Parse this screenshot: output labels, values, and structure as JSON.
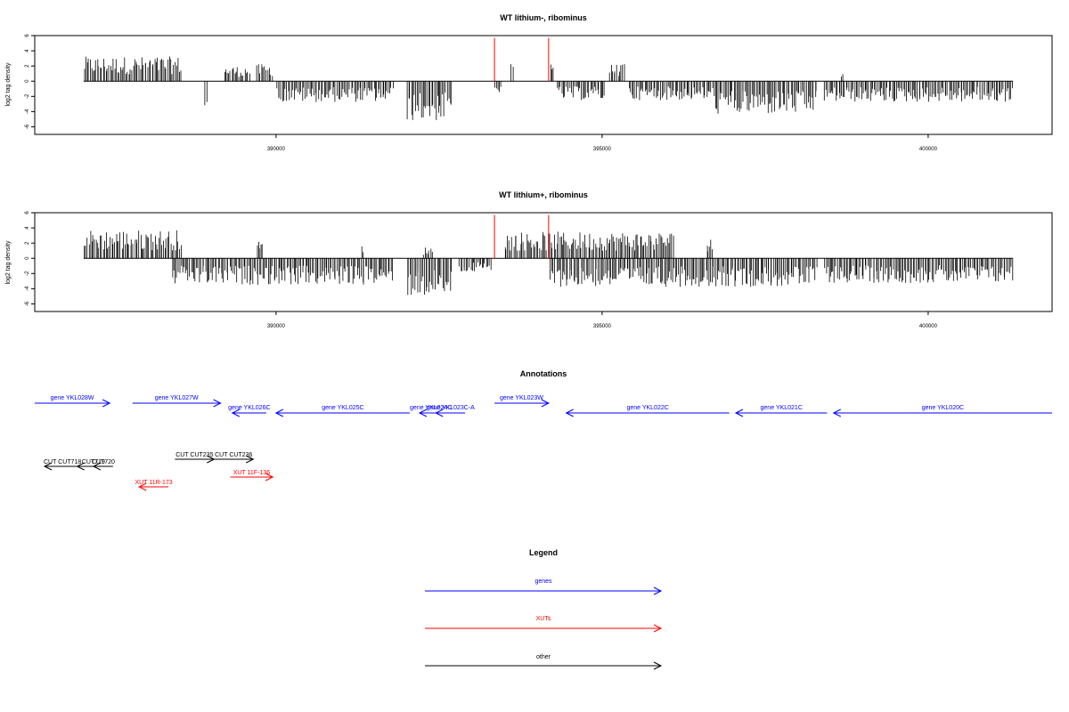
{
  "chart_data": [
    {
      "type": "bar",
      "title": "WT lithium-, ribominus",
      "ylabel": "log2 tag density",
      "xlabel": "",
      "xlim": [
        386300,
        401900
      ],
      "ylim": [
        -7,
        6
      ],
      "x_ticks": [
        390000,
        395000,
        400000
      ],
      "y_ticks": [
        -6,
        -4,
        -2,
        0,
        2,
        4,
        6
      ],
      "data_range": [
        387050,
        401300
      ],
      "red_markers": [
        393350,
        394180
      ],
      "positive_regions": [
        {
          "from": 387050,
          "to": 388550,
          "level": 2.6
        },
        {
          "from": 389200,
          "to": 389600,
          "level": 1.6
        },
        {
          "from": 389700,
          "to": 389950,
          "level": 1.8
        },
        {
          "from": 393600,
          "to": 393650,
          "level": 2.8
        },
        {
          "from": 394200,
          "to": 394260,
          "level": 2.4
        },
        {
          "from": 395100,
          "to": 395350,
          "level": 1.8
        },
        {
          "from": 398650,
          "to": 398700,
          "level": 0.8
        }
      ],
      "negative_regions": [
        {
          "from": 388900,
          "to": 388950,
          "level": -3.0
        },
        {
          "from": 390000,
          "to": 391800,
          "level": -2.2
        },
        {
          "from": 392000,
          "to": 392700,
          "level": -4.2
        },
        {
          "from": 393350,
          "to": 393450,
          "level": -1.2
        },
        {
          "from": 394300,
          "to": 395050,
          "level": -2.0
        },
        {
          "from": 395400,
          "to": 396700,
          "level": -2.0
        },
        {
          "from": 396700,
          "to": 398300,
          "level": -3.5
        },
        {
          "from": 398400,
          "to": 401300,
          "level": -2.2
        }
      ]
    },
    {
      "type": "bar",
      "title": "WT lithium+, ribominus",
      "ylabel": "log2 tag density",
      "xlabel": "",
      "xlim": [
        386300,
        401900
      ],
      "ylim": [
        -7,
        6
      ],
      "x_ticks": [
        390000,
        395000,
        400000
      ],
      "y_ticks": [
        -6,
        -4,
        -2,
        0,
        2,
        4,
        6
      ],
      "data_range": [
        387050,
        401300
      ],
      "red_markers": [
        393350,
        394180
      ],
      "positive_regions": [
        {
          "from": 387050,
          "to": 388550,
          "level": 3.0
        },
        {
          "from": 389700,
          "to": 389800,
          "level": 1.8
        },
        {
          "from": 391300,
          "to": 391350,
          "level": 1.5
        },
        {
          "from": 392250,
          "to": 392400,
          "level": 1.2
        },
        {
          "from": 393500,
          "to": 396100,
          "level": 2.8
        },
        {
          "from": 396600,
          "to": 396700,
          "level": 2.5
        }
      ],
      "negative_regions": [
        {
          "from": 388400,
          "to": 391800,
          "level": -2.8
        },
        {
          "from": 392000,
          "to": 392700,
          "level": -4.0
        },
        {
          "from": 392800,
          "to": 393300,
          "level": -1.5
        },
        {
          "from": 394200,
          "to": 398300,
          "level": -3.0
        },
        {
          "from": 398400,
          "to": 401300,
          "level": -2.6
        }
      ]
    }
  ],
  "annotations": {
    "title": "Annotations",
    "genes": [
      {
        "label": "gene YKL028W",
        "from": 386300,
        "to": 387450,
        "strand": "+"
      },
      {
        "label": "gene YKL027W",
        "from": 387800,
        "to": 389150,
        "strand": "+"
      },
      {
        "label": "gene YKL026C",
        "from": 389330,
        "to": 389850,
        "strand": "-"
      },
      {
        "label": "gene YKL025C",
        "from": 390000,
        "to": 392050,
        "strand": "-"
      },
      {
        "label": "gene YKL024C",
        "from": 392200,
        "to": 392550,
        "strand": "-"
      },
      {
        "label": "gene YKL023C-A",
        "from": 392450,
        "to": 392900,
        "strand": "-"
      },
      {
        "label": "gene YKL023W",
        "from": 393350,
        "to": 394180,
        "strand": "+"
      },
      {
        "label": "gene YKL022C",
        "from": 394450,
        "to": 396950,
        "strand": "-"
      },
      {
        "label": "gene YKL021C",
        "from": 397050,
        "to": 398450,
        "strand": "-"
      },
      {
        "label": "gene YKL020C",
        "from": 398550,
        "to": 401900,
        "strand": "-"
      }
    ],
    "other": [
      {
        "label": "CUT CUT718",
        "from": 386450,
        "to": 387000,
        "strand": "-"
      },
      {
        "label": "CUT719",
        "from": 386950,
        "to": 387450,
        "strand": "-"
      },
      {
        "label": "CUT720",
        "from": 387200,
        "to": 387500,
        "strand": "-"
      },
      {
        "label": "CUT CUT235",
        "from": 388450,
        "to": 389050,
        "strand": "+"
      },
      {
        "label": "CUT CUT236",
        "from": 389050,
        "to": 389650,
        "strand": "+"
      }
    ],
    "xuts": [
      {
        "label": "XUT 11R-173",
        "from": 387900,
        "to": 388350,
        "strand": "-"
      },
      {
        "label": "XUT 11F-136",
        "from": 389300,
        "to": 389950,
        "strand": "+"
      }
    ]
  },
  "legend": {
    "title": "Legend",
    "items": [
      {
        "label": "genes",
        "color": "#0000ff"
      },
      {
        "label": "XUTs",
        "color": "#ff0000"
      },
      {
        "label": "other",
        "color": "#000000"
      }
    ]
  }
}
